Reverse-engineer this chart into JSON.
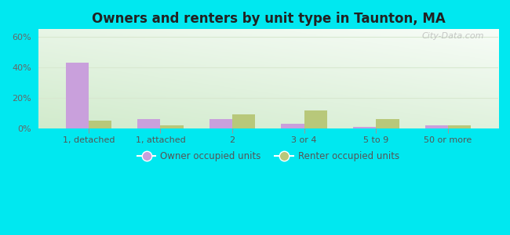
{
  "categories": [
    "1, detached",
    "1, attached",
    "2",
    "3 or 4",
    "5 to 9",
    "50 or more"
  ],
  "owner_values": [
    43,
    6,
    6,
    3,
    1,
    2
  ],
  "renter_values": [
    5,
    2,
    9,
    12,
    6,
    2
  ],
  "owner_color": "#c9a0dc",
  "renter_color": "#b8c87a",
  "title": "Owners and renters by unit type in Taunton, MA",
  "title_fontsize": 12,
  "ylim": [
    0,
    65
  ],
  "yticks": [
    0,
    20,
    40,
    60
  ],
  "ytick_labels": [
    "0%",
    "20%",
    "40%",
    "60%"
  ],
  "background_outer": "#00e8f0",
  "grid_color": "#d8e8d0",
  "legend_owner": "Owner occupied units",
  "legend_renter": "Renter occupied units",
  "bar_width": 0.32,
  "watermark": "City-Data.com"
}
